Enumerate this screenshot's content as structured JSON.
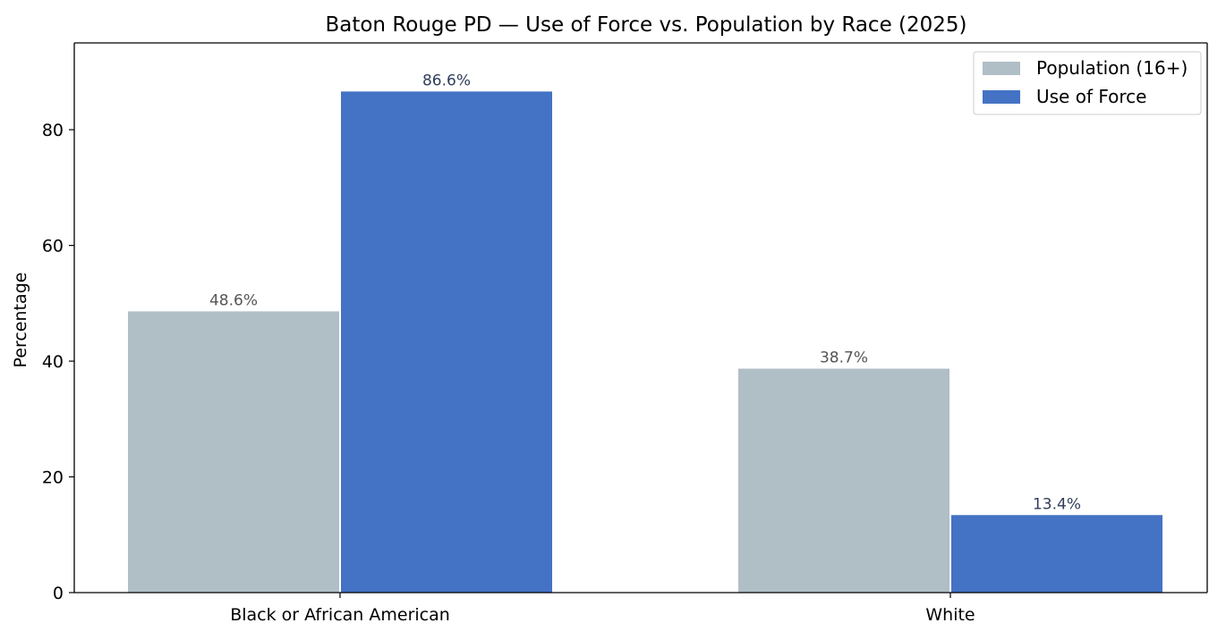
{
  "chart_data": {
    "type": "bar",
    "title": "Baton Rouge PD — Use of Force vs. Population by Race (2025)",
    "xlabel": "",
    "ylabel": "Percentage",
    "categories": [
      "Black or African American",
      "White"
    ],
    "series": [
      {
        "name": "Population (16+)",
        "values": [
          48.6,
          38.7
        ],
        "labels": [
          "48.6%",
          "38.7%"
        ],
        "color": "#b0bec5",
        "label_color": "#555555"
      },
      {
        "name": "Use of Force",
        "values": [
          86.6,
          13.4
        ],
        "labels": [
          "86.6%",
          "13.4%"
        ],
        "color": "#4472c4",
        "label_color": "#2f3e5a"
      }
    ],
    "ylim": [
      0,
      95
    ],
    "yticks": [
      0,
      20,
      40,
      60,
      80
    ],
    "grid": false,
    "legend_position": "top-right"
  }
}
